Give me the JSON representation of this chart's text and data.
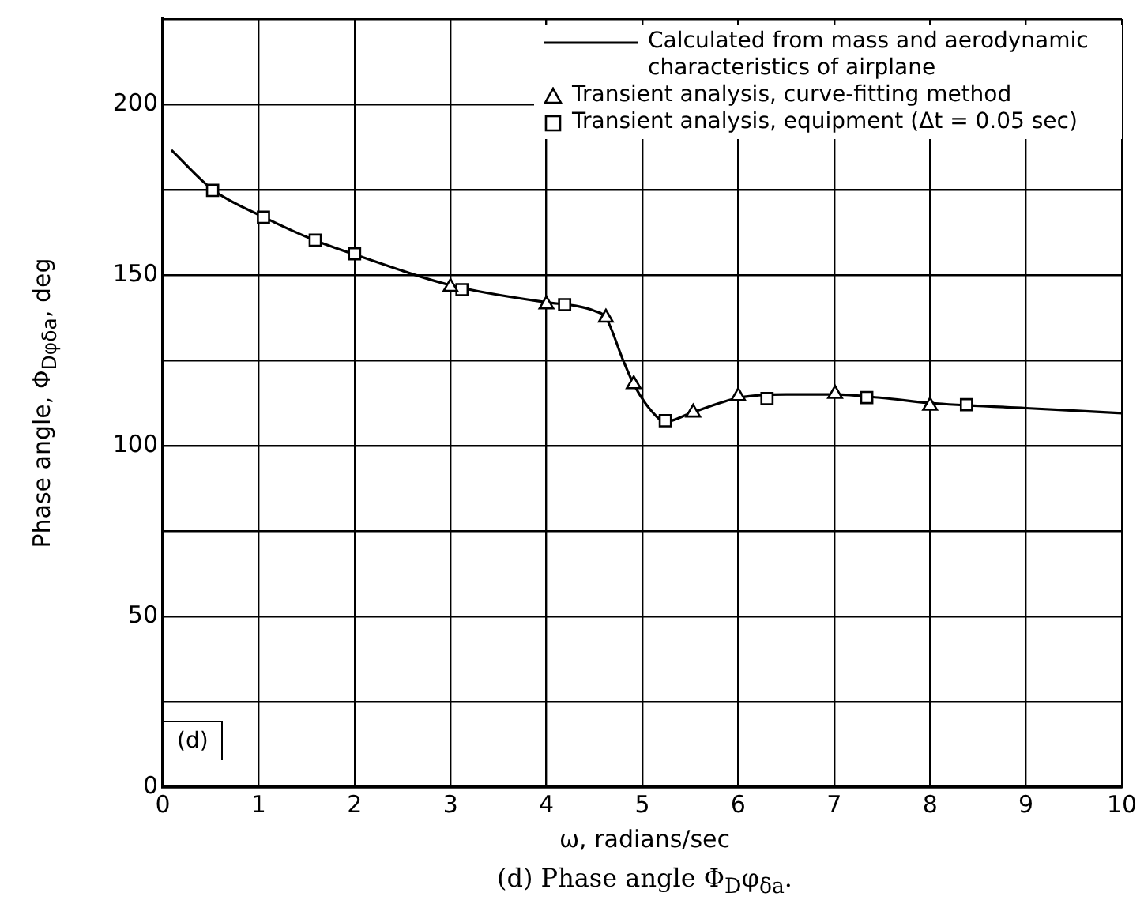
{
  "chart_data": {
    "type": "line",
    "xlabel": "ω, radians/sec",
    "ylabel": "Phase angle, Φ$_{Dφδa}$, deg",
    "xlim": [
      0,
      10
    ],
    "xticks": [
      0,
      1,
      2,
      3,
      4,
      5,
      6,
      7,
      8,
      9,
      10
    ],
    "ylim": [
      0,
      225
    ],
    "yticks": [
      0,
      {
        "value": 25,
        "label": null
      },
      50,
      {
        "value": 75,
        "label": null
      },
      100,
      {
        "value": 125,
        "label": null
      },
      150,
      {
        "value": 175,
        "label": null
      },
      200,
      {
        "value": 225,
        "label": null
      }
    ],
    "grid": true,
    "legend": "top right",
    "annotations": [
      {
        "text": "(d)"
      },
      "(d) Phase angle Φ$_{D}$φ$_{δa}$."
    ],
    "series": [
      {
        "name": "Calculated from mass and aerodynamic characteristics of airplane",
        "color": "#000000",
        "marker": "none",
        "line_style": "solid",
        "x": [
          0.09,
          0.52,
          1.05,
          1.6,
          2.0,
          3.0,
          4.0,
          4.3,
          4.5,
          4.62,
          4.8,
          4.91,
          5.1,
          5.24,
          5.5,
          6.0,
          6.5,
          7.0,
          7.5,
          8.0,
          9.0,
          10
        ],
        "values": [
          186.6,
          175,
          167,
          160,
          156,
          147,
          142,
          141,
          139.5,
          137.5,
          125,
          118,
          110,
          107,
          109.5,
          114,
          115,
          115,
          114,
          112.5,
          111,
          109.5
        ]
      },
      {
        "name": "Transient analysis, curve-fitting method",
        "type": "scatter",
        "color": "#000000",
        "marker": "triangle",
        "x": [
          3.0,
          4.0,
          4.62,
          4.91,
          5.53,
          6.0,
          7.01,
          8.0
        ],
        "values": [
          146.5,
          141.4,
          137.5,
          118,
          109.7,
          114.5,
          115.2,
          111.7
        ]
      },
      {
        "name": "Transient analysis, equipment (Δt = 0.05 sec)",
        "type": "scatter",
        "color": "#000000",
        "marker": "square",
        "x": [
          0.52,
          1.05,
          1.59,
          2.0,
          3.12,
          4.19,
          5.24,
          6.3,
          7.34,
          8.38
        ],
        "values": [
          174.8,
          166.9,
          160.2,
          156.2,
          145.7,
          141.3,
          107.3,
          113.8,
          114.1,
          112
        ]
      }
    ]
  }
}
